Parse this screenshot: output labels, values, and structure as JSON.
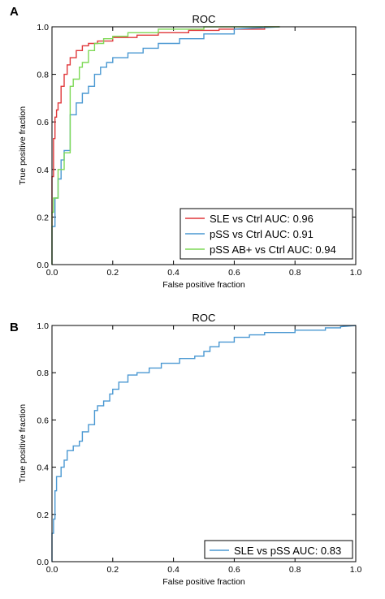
{
  "colors": {
    "red": "#e0373a",
    "blue": "#4a98d2",
    "green": "#7ed957",
    "axis": "#000000"
  },
  "chart_data": [
    {
      "panel": "A",
      "type": "line",
      "title": "ROC",
      "xlabel": "False positive fraction",
      "ylabel": "True positive fraction",
      "xlim": [
        0,
        1
      ],
      "ylim": [
        0,
        1
      ],
      "xticks": [
        "0.0",
        "0.2",
        "0.4",
        "0.6",
        "0.8",
        "1.0"
      ],
      "yticks": [
        "0.0",
        "0.2",
        "0.4",
        "0.6",
        "0.8",
        "1.0"
      ],
      "grid": false,
      "legend_position": "lower-right",
      "series": [
        {
          "name": "SLE vs Ctrl AUC: 0.96",
          "color_key": "red",
          "x": [
            0,
            0,
            0.005,
            0.005,
            0.01,
            0.01,
            0.015,
            0.015,
            0.02,
            0.02,
            0.03,
            0.03,
            0.04,
            0.04,
            0.05,
            0.05,
            0.06,
            0.06,
            0.08,
            0.08,
            0.1,
            0.1,
            0.12,
            0.12,
            0.15,
            0.15,
            0.2,
            0.2,
            0.28,
            0.28,
            0.35,
            0.35,
            0.45,
            0.45,
            0.55,
            0.55,
            0.7,
            0.7,
            0.75
          ],
          "y": [
            0,
            0.37,
            0.37,
            0.53,
            0.53,
            0.62,
            0.62,
            0.65,
            0.65,
            0.68,
            0.68,
            0.75,
            0.75,
            0.8,
            0.8,
            0.84,
            0.84,
            0.87,
            0.87,
            0.9,
            0.9,
            0.92,
            0.92,
            0.93,
            0.93,
            0.94,
            0.94,
            0.955,
            0.955,
            0.965,
            0.965,
            0.975,
            0.975,
            0.985,
            0.985,
            0.99,
            0.99,
            1.0,
            1.0
          ]
        },
        {
          "name": "pSS vs Ctrl AUC: 0.91",
          "color_key": "blue",
          "x": [
            0,
            0,
            0.01,
            0.01,
            0.02,
            0.02,
            0.03,
            0.03,
            0.04,
            0.04,
            0.06,
            0.06,
            0.08,
            0.08,
            0.1,
            0.1,
            0.12,
            0.12,
            0.14,
            0.14,
            0.16,
            0.16,
            0.18,
            0.18,
            0.2,
            0.2,
            0.25,
            0.25,
            0.3,
            0.3,
            0.35,
            0.35,
            0.42,
            0.42,
            0.5,
            0.5,
            0.6,
            0.6,
            0.75
          ],
          "y": [
            0,
            0.16,
            0.16,
            0.28,
            0.28,
            0.36,
            0.36,
            0.44,
            0.44,
            0.48,
            0.48,
            0.63,
            0.63,
            0.68,
            0.68,
            0.72,
            0.72,
            0.75,
            0.75,
            0.8,
            0.8,
            0.83,
            0.83,
            0.85,
            0.85,
            0.87,
            0.87,
            0.89,
            0.89,
            0.91,
            0.91,
            0.93,
            0.93,
            0.95,
            0.95,
            0.97,
            0.97,
            0.99,
            1.0
          ]
        },
        {
          "name": "pSS AB+ vs Ctrl AUC: 0.94",
          "color_key": "green",
          "x": [
            0,
            0,
            0.005,
            0.005,
            0.02,
            0.02,
            0.04,
            0.04,
            0.06,
            0.06,
            0.07,
            0.07,
            0.09,
            0.09,
            0.1,
            0.1,
            0.12,
            0.12,
            0.14,
            0.14,
            0.17,
            0.17,
            0.2,
            0.2,
            0.25,
            0.25,
            0.35,
            0.35,
            0.5,
            0.5,
            0.75
          ],
          "y": [
            0,
            0.22,
            0.22,
            0.28,
            0.28,
            0.4,
            0.4,
            0.47,
            0.47,
            0.75,
            0.75,
            0.78,
            0.78,
            0.83,
            0.83,
            0.85,
            0.85,
            0.9,
            0.9,
            0.93,
            0.93,
            0.95,
            0.95,
            0.96,
            0.96,
            0.975,
            0.975,
            0.99,
            0.99,
            1.0,
            1.0
          ]
        }
      ]
    },
    {
      "panel": "B",
      "type": "line",
      "title": "ROC",
      "xlabel": "False positive fraction",
      "ylabel": "True positive fraction",
      "xlim": [
        0,
        1
      ],
      "ylim": [
        0,
        1
      ],
      "xticks": [
        "0.0",
        "0.2",
        "0.4",
        "0.6",
        "0.8",
        "1.0"
      ],
      "yticks": [
        "0.0",
        "0.2",
        "0.4",
        "0.6",
        "0.8",
        "1.0"
      ],
      "grid": false,
      "legend_position": "lower-right",
      "series": [
        {
          "name": "SLE vs pSS AUC: 0.83",
          "color_key": "blue",
          "x": [
            0,
            0,
            0.005,
            0.005,
            0.01,
            0.01,
            0.015,
            0.015,
            0.03,
            0.03,
            0.04,
            0.04,
            0.05,
            0.05,
            0.07,
            0.07,
            0.09,
            0.09,
            0.1,
            0.1,
            0.12,
            0.12,
            0.14,
            0.14,
            0.15,
            0.15,
            0.17,
            0.17,
            0.19,
            0.19,
            0.2,
            0.2,
            0.22,
            0.22,
            0.25,
            0.25,
            0.28,
            0.28,
            0.32,
            0.32,
            0.36,
            0.36,
            0.42,
            0.42,
            0.47,
            0.47,
            0.5,
            0.5,
            0.52,
            0.52,
            0.55,
            0.55,
            0.6,
            0.6,
            0.65,
            0.65,
            0.7,
            0.7,
            0.8,
            0.8,
            0.9,
            0.9,
            0.95,
            0.95,
            1.0
          ],
          "y": [
            0,
            0.12,
            0.12,
            0.18,
            0.18,
            0.3,
            0.3,
            0.36,
            0.36,
            0.4,
            0.4,
            0.43,
            0.43,
            0.47,
            0.47,
            0.49,
            0.49,
            0.51,
            0.51,
            0.55,
            0.55,
            0.58,
            0.58,
            0.64,
            0.64,
            0.66,
            0.66,
            0.68,
            0.68,
            0.71,
            0.71,
            0.73,
            0.73,
            0.76,
            0.76,
            0.79,
            0.79,
            0.8,
            0.8,
            0.82,
            0.82,
            0.84,
            0.84,
            0.86,
            0.86,
            0.87,
            0.87,
            0.89,
            0.89,
            0.91,
            0.91,
            0.93,
            0.93,
            0.95,
            0.95,
            0.96,
            0.96,
            0.97,
            0.97,
            0.98,
            0.98,
            0.99,
            0.99,
            0.995,
            1.0
          ]
        }
      ]
    }
  ]
}
